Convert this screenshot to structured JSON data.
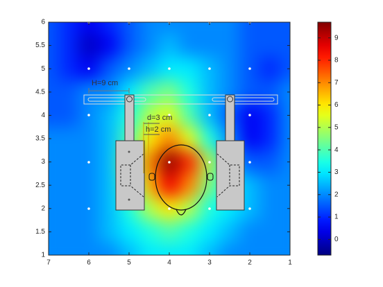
{
  "chart_data": {
    "type": "heatmap",
    "x": [
      7,
      6.5,
      6,
      5.5,
      5,
      4.5,
      4,
      3.5,
      3,
      2.5,
      2,
      1.5,
      1
    ],
    "y": [
      6,
      5.5,
      5,
      4.5,
      4,
      3.5,
      3,
      2.5,
      2,
      1.5,
      1
    ],
    "z": [
      [
        1.5,
        1,
        0.5,
        1,
        1.5,
        2,
        2,
        2,
        2,
        2,
        1.5,
        1.5,
        1.5
      ],
      [
        1.5,
        1,
        0,
        0.5,
        1.5,
        2,
        2.5,
        2,
        2,
        2,
        1.5,
        1.5,
        1.5
      ],
      [
        1.5,
        1,
        0.5,
        1.5,
        2,
        2.5,
        3,
        3,
        2.5,
        2,
        1.5,
        1,
        1.5
      ],
      [
        1.5,
        1.5,
        2,
        2,
        3,
        4,
        4.5,
        3.5,
        2.5,
        2,
        1.5,
        1.5,
        2
      ],
      [
        1.5,
        1.5,
        2,
        2.5,
        3.5,
        5,
        5.5,
        4,
        2.5,
        1.5,
        0.5,
        1,
        2
      ],
      [
        2,
        2,
        2,
        2.5,
        4,
        6,
        7,
        5.5,
        3.5,
        2,
        0.5,
        1,
        2
      ],
      [
        2,
        2,
        2,
        2.5,
        4.5,
        7,
        9.5,
        8,
        5,
        2.5,
        1.5,
        1.5,
        2
      ],
      [
        2,
        2,
        2,
        2.5,
        4,
        6.5,
        8.5,
        7,
        4.5,
        3,
        2.5,
        2,
        2
      ],
      [
        2,
        2,
        2,
        2.5,
        3.5,
        5,
        6,
        5,
        3.5,
        3,
        2.5,
        2,
        2
      ],
      [
        2,
        2,
        2,
        2.5,
        3,
        3.5,
        4,
        3.5,
        3,
        2.5,
        2,
        2,
        2
      ],
      [
        2,
        2,
        2,
        2,
        2.5,
        3,
        3,
        3,
        2.5,
        2,
        2,
        2,
        2
      ]
    ],
    "colormap": "jet",
    "xlim": [
      7,
      1
    ],
    "ylim": [
      1,
      6
    ],
    "xticks": [
      7,
      6,
      5,
      4,
      3,
      2,
      1
    ],
    "yticks": [
      1,
      1.5,
      2,
      2.5,
      3,
      3.5,
      4,
      4.5,
      5,
      5.5,
      6
    ],
    "clim": [
      -0.7,
      9.7
    ],
    "cticks": [
      0,
      1,
      2,
      3,
      4,
      5,
      6,
      7,
      8,
      9
    ],
    "annotations": [
      "H=9 cm",
      "d=3 cm",
      "h=2 cm"
    ]
  }
}
